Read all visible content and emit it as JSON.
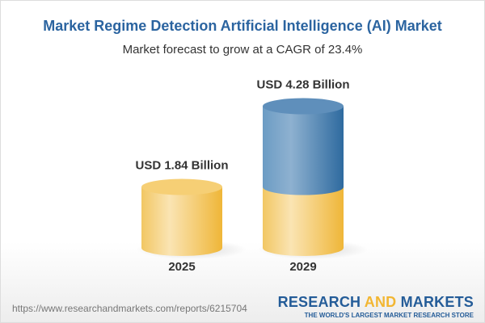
{
  "title": "Market Regime Detection Artificial Intelligence (AI) Market",
  "subtitle": "Market forecast to grow at a CAGR of 23.4%",
  "chart_data": {
    "type": "bar",
    "style": "3d-cylinder",
    "categories": [
      "2025",
      "2029"
    ],
    "values": [
      1.84,
      4.28
    ],
    "data_labels": [
      "USD 1.84 Billion",
      "USD 4.28 Billion"
    ],
    "unit": "USD Billion",
    "colors": {
      "base": "#f2c15a",
      "growth": "#3f78aa"
    },
    "grid": false
  },
  "footer": {
    "url": "https://www.researchandmarkets.com/reports/6215704",
    "logo_part1": "RESEARCH ",
    "logo_part2": "AND",
    "logo_part3": " MARKETS",
    "tagline": "THE WORLD'S LARGEST MARKET RESEARCH STORE"
  }
}
